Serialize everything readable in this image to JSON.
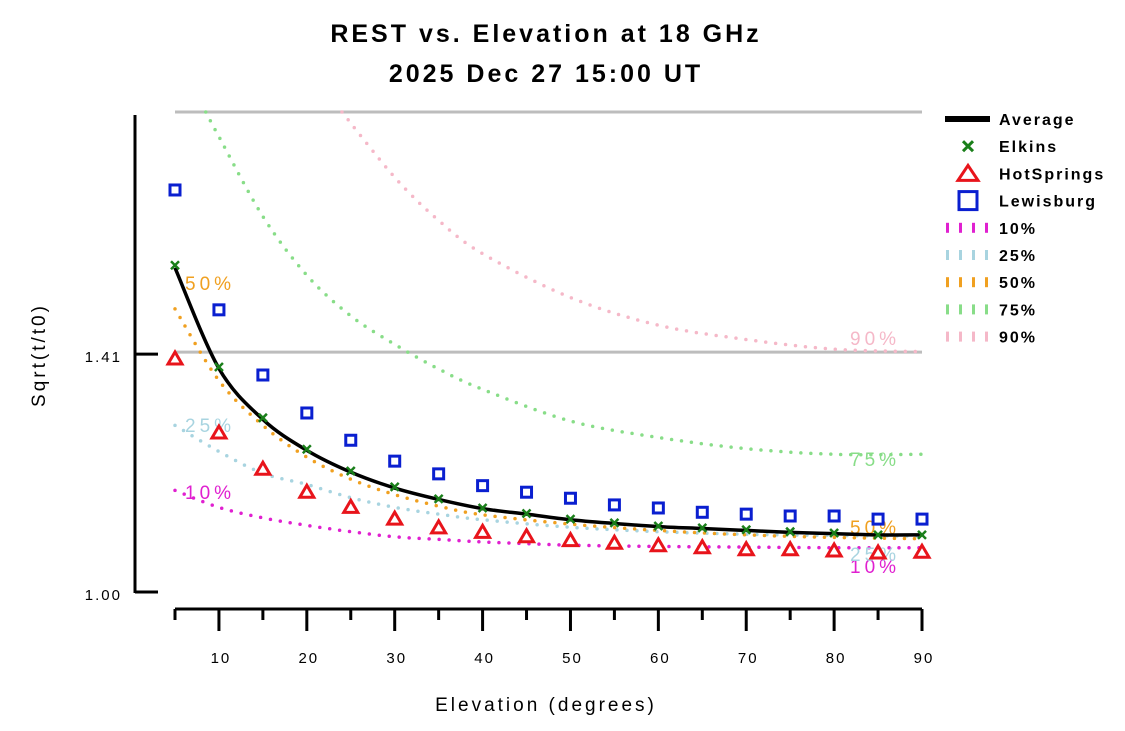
{
  "chart_data": {
    "type": "scatter",
    "title": "REST vs. Elevation at 18 GHz",
    "subtitle": "2025 Dec 27 15:00 UT",
    "xlabel": "Elevation (degrees)",
    "ylabel": "Sqrt(t/t0)",
    "xlim": [
      5,
      90
    ],
    "ylim": [
      1.0,
      2.0
    ],
    "yscale": "log2",
    "x_ticks_major": [
      10,
      20,
      30,
      40,
      50,
      60,
      70,
      80,
      90
    ],
    "x_ticks_minor": [
      5,
      15,
      25,
      35,
      45,
      55,
      65,
      75,
      85
    ],
    "x_tick_labels": [
      "10",
      "20",
      "30",
      "40",
      "50",
      "60",
      "70",
      "80",
      "90"
    ],
    "y_ticks": [
      1.0,
      1.41
    ],
    "y_tick_labels": [
      "1.00",
      "1.41"
    ],
    "reference_lines": [
      1.414,
      2.0
    ],
    "legend_position": "right",
    "x": [
      5,
      10,
      15,
      20,
      25,
      30,
      35,
      40,
      45,
      50,
      55,
      60,
      65,
      70,
      75,
      80,
      85,
      90
    ],
    "series": [
      {
        "name": "Average",
        "kind": "line",
        "color": "#000000",
        "values": [
          1.597,
          1.381,
          1.283,
          1.227,
          1.189,
          1.162,
          1.143,
          1.128,
          1.119,
          1.11,
          1.104,
          1.099,
          1.096,
          1.093,
          1.09,
          1.088,
          1.086,
          1.086
        ]
      },
      {
        "name": "Elkins",
        "kind": "marker-x",
        "color": "#1a7f1a",
        "values": [
          1.603,
          1.384,
          1.286,
          1.229,
          1.191,
          1.164,
          1.144,
          1.129,
          1.12,
          1.111,
          1.105,
          1.1,
          1.097,
          1.094,
          1.091,
          1.089,
          1.086,
          1.086
        ]
      },
      {
        "name": "HotSprings",
        "kind": "marker-triangle",
        "color": "#e8141b",
        "values": [
          1.4,
          1.258,
          1.194,
          1.155,
          1.13,
          1.111,
          1.097,
          1.09,
          1.083,
          1.077,
          1.073,
          1.069,
          1.066,
          1.063,
          1.063,
          1.061,
          1.058,
          1.059
        ]
      },
      {
        "name": "Lewisburg",
        "kind": "marker-square",
        "color": "#0a1fd0",
        "values": [
          1.787,
          1.503,
          1.368,
          1.295,
          1.245,
          1.208,
          1.186,
          1.166,
          1.155,
          1.145,
          1.134,
          1.129,
          1.122,
          1.119,
          1.116,
          1.116,
          1.111,
          1.111
        ]
      }
    ],
    "percentile_curves": [
      {
        "name": "10%",
        "color": "#e020d0",
        "label": "10%",
        "x": [
          5,
          10,
          15,
          20,
          25,
          30,
          35,
          40,
          50,
          60,
          70,
          80,
          90
        ],
        "values": [
          1.158,
          1.13,
          1.113,
          1.101,
          1.091,
          1.083,
          1.079,
          1.075,
          1.07,
          1.068,
          1.067,
          1.066,
          1.066
        ]
      },
      {
        "name": "25%",
        "color": "#a8d4e0",
        "label": "25%",
        "x": [
          5,
          10,
          15,
          20,
          25,
          30,
          35,
          40,
          50,
          60,
          70,
          80,
          90
        ],
        "values": [
          1.272,
          1.225,
          1.187,
          1.168,
          1.146,
          1.13,
          1.119,
          1.11,
          1.098,
          1.091,
          1.087,
          1.085,
          1.084
        ]
      },
      {
        "name": "50%",
        "color": "#f0a020",
        "label": "50%",
        "x": [
          5,
          10,
          15,
          20,
          25,
          30,
          35,
          40,
          50,
          60,
          70,
          80,
          90
        ],
        "values": [
          1.505,
          1.357,
          1.272,
          1.215,
          1.177,
          1.151,
          1.132,
          1.118,
          1.103,
          1.093,
          1.086,
          1.082,
          1.08
        ]
      },
      {
        "name": "75%",
        "color": "#88dd88",
        "label": "75%",
        "x": [
          8.5,
          10,
          15,
          20,
          25,
          30,
          35,
          40,
          50,
          60,
          70,
          80,
          90
        ],
        "values": [
          2.0,
          1.93,
          1.72,
          1.58,
          1.49,
          1.43,
          1.38,
          1.34,
          1.28,
          1.25,
          1.23,
          1.22,
          1.22
        ]
      },
      {
        "name": "90%",
        "color": "#f5b8c8",
        "label": "90%",
        "x": [
          24,
          30,
          35,
          40,
          50,
          60,
          70,
          80,
          90
        ],
        "values": [
          2.0,
          1.82,
          1.71,
          1.63,
          1.53,
          1.47,
          1.44,
          1.42,
          1.415
        ]
      }
    ],
    "legend": [
      {
        "label": "Average",
        "kind": "line",
        "color": "#000000"
      },
      {
        "label": "Elkins",
        "kind": "marker-x",
        "color": "#1a7f1a"
      },
      {
        "label": "HotSprings",
        "kind": "marker-triangle",
        "color": "#e8141b"
      },
      {
        "label": "Lewisburg",
        "kind": "marker-square",
        "color": "#0a1fd0"
      },
      {
        "label": "10%",
        "kind": "dotted",
        "color": "#e020d0"
      },
      {
        "label": "25%",
        "kind": "dotted",
        "color": "#a8d4e0"
      },
      {
        "label": "50%",
        "kind": "dotted",
        "color": "#f0a020"
      },
      {
        "label": "75%",
        "kind": "dotted",
        "color": "#88dd88"
      },
      {
        "label": "90%",
        "kind": "dotted",
        "color": "#f5b8c8"
      }
    ]
  }
}
